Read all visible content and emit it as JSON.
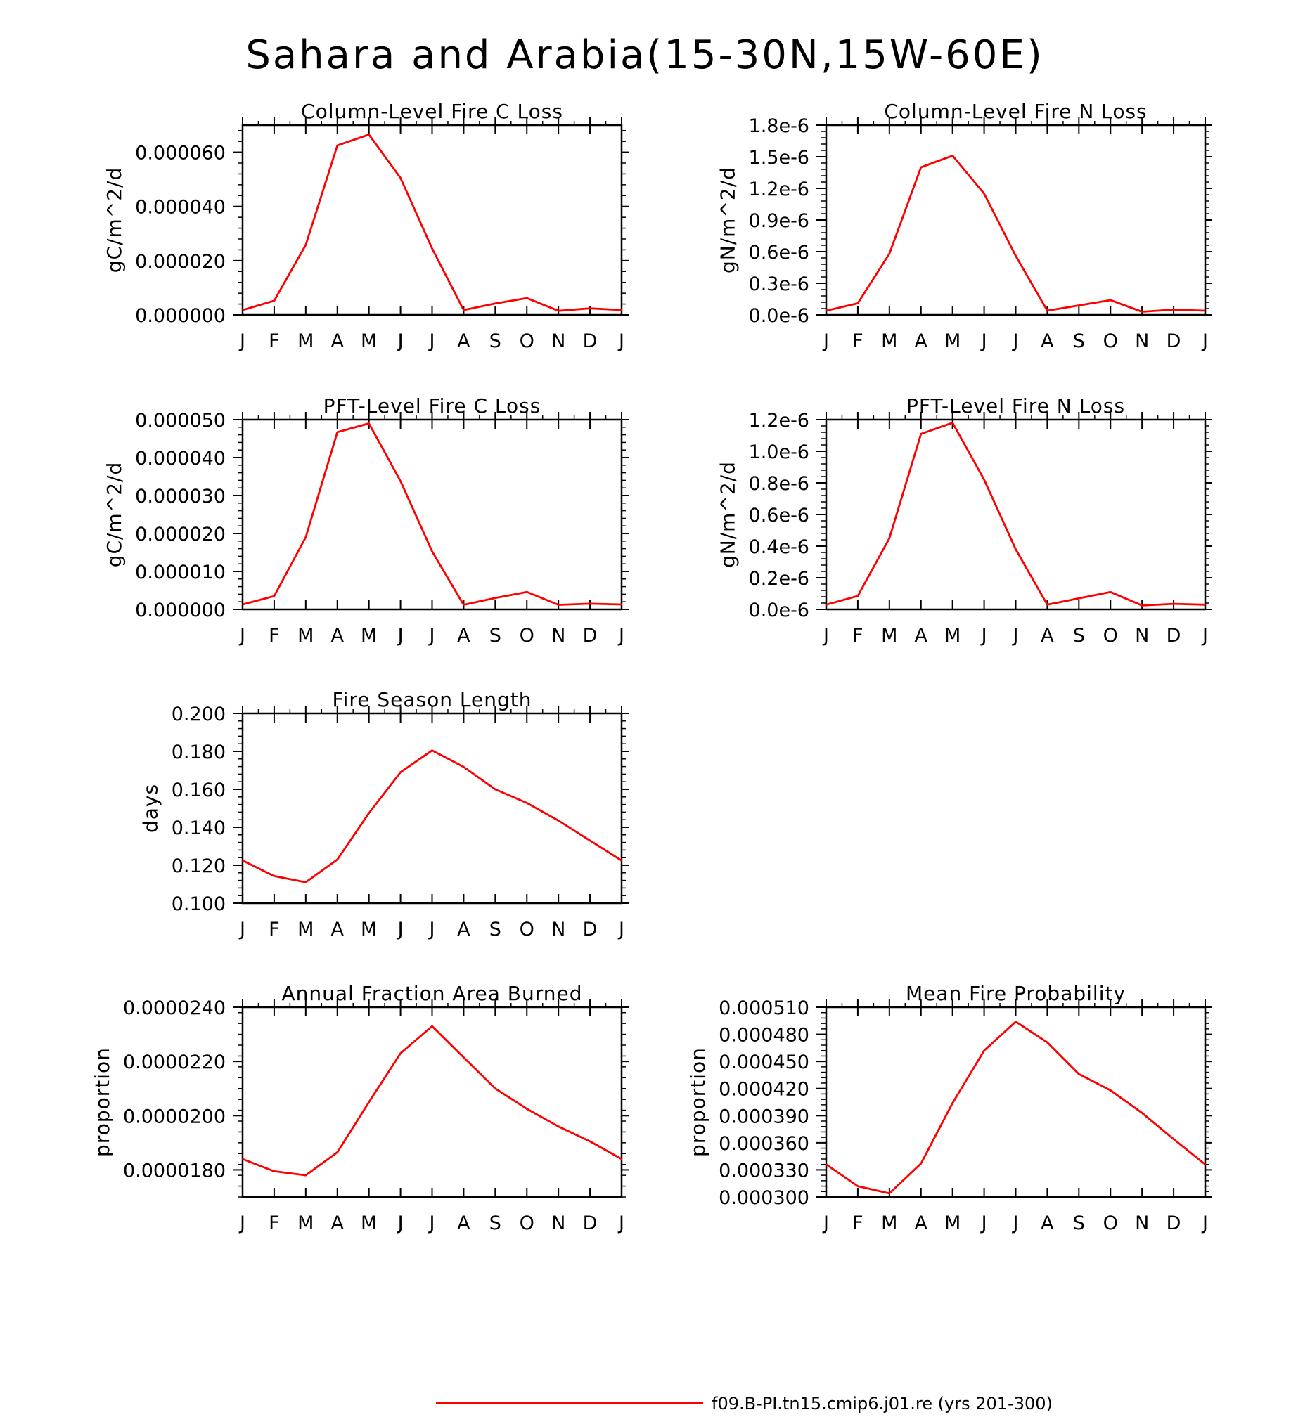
{
  "main_title": "Sahara and Arabia(15-30N,15W-60E)",
  "series_color": "#ff0000",
  "legend": {
    "label": "f09.B-PI.tn15.cmip6.j01.re (yrs 201-300)"
  },
  "chart_data": [
    {
      "type": "line",
      "title": "Column-Level Fire C Loss",
      "ylabel": "gC/m^2/d",
      "categories": [
        "J",
        "F",
        "M",
        "A",
        "M",
        "J",
        "J",
        "A",
        "S",
        "O",
        "N",
        "D",
        "J"
      ],
      "ylim": [
        0,
        7e-05
      ],
      "yticks": [
        0,
        2e-05,
        4e-05,
        6e-05
      ],
      "yticklabels": [
        "0.000000",
        "0.000020",
        "0.000040",
        "0.000060"
      ],
      "series": [
        {
          "values": [
            1.8e-06,
            5.2e-06,
            2.58e-05,
            6.25e-05,
            6.65e-05,
            5.05e-05,
            2.45e-05,
            1.8e-06,
            4.2e-06,
            6.2e-06,
            1.5e-06,
            2.4e-06,
            1.8e-06
          ]
        }
      ]
    },
    {
      "type": "line",
      "title": "Column-Level Fire N Loss",
      "ylabel": "gN/m^2/d",
      "categories": [
        "J",
        "F",
        "M",
        "A",
        "M",
        "J",
        "J",
        "A",
        "S",
        "O",
        "N",
        "D",
        "J"
      ],
      "ylim": [
        0,
        1.8e-06
      ],
      "yticks": [
        0,
        3e-07,
        6e-07,
        9e-07,
        1.2e-06,
        1.5e-06,
        1.8e-06
      ],
      "yticklabels": [
        "0.0e-6",
        "0.3e-6",
        "0.6e-6",
        "0.9e-6",
        "1.2e-6",
        "1.5e-6",
        "1.8e-6"
      ],
      "series": [
        {
          "values": [
            4e-08,
            1.1e-07,
            5.8e-07,
            1.4e-06,
            1.51e-06,
            1.15e-06,
            5.6e-07,
            4e-08,
            9e-08,
            1.4e-07,
            3e-08,
            5e-08,
            4e-08
          ]
        }
      ]
    },
    {
      "type": "line",
      "title": "PFT-Level Fire C Loss",
      "ylabel": "gC/m^2/d",
      "categories": [
        "J",
        "F",
        "M",
        "A",
        "M",
        "J",
        "J",
        "A",
        "S",
        "O",
        "N",
        "D",
        "J"
      ],
      "ylim": [
        0,
        5e-05
      ],
      "yticks": [
        0,
        1e-05,
        2e-05,
        3e-05,
        4e-05,
        5e-05
      ],
      "yticklabels": [
        "0.000000",
        "0.000010",
        "0.000020",
        "0.000030",
        "0.000040",
        "0.000050"
      ],
      "series": [
        {
          "values": [
            1.3e-06,
            3.5e-06,
            1.9e-05,
            4.67e-05,
            4.9e-05,
            3.38e-05,
            1.53e-05,
            1.2e-06,
            3e-06,
            4.6e-06,
            1.2e-06,
            1.5e-06,
            1.3e-06
          ]
        }
      ]
    },
    {
      "type": "line",
      "title": "PFT-Level Fire N Loss",
      "ylabel": "gN/m^2/d",
      "categories": [
        "J",
        "F",
        "M",
        "A",
        "M",
        "J",
        "J",
        "A",
        "S",
        "O",
        "N",
        "D",
        "J"
      ],
      "ylim": [
        0,
        1.2e-06
      ],
      "yticks": [
        0,
        2e-07,
        4e-07,
        6e-07,
        8e-07,
        1e-06,
        1.2e-06
      ],
      "yticklabels": [
        "0.0e-6",
        "0.2e-6",
        "0.4e-6",
        "0.6e-6",
        "0.8e-6",
        "1.0e-6",
        "1.2e-6"
      ],
      "series": [
        {
          "values": [
            3e-08,
            8.5e-08,
            4.5e-07,
            1.11e-06,
            1.18e-06,
            8.2e-07,
            3.8e-07,
            3e-08,
            7e-08,
            1.1e-07,
            2.5e-08,
            3.5e-08,
            3e-08
          ]
        }
      ]
    },
    {
      "type": "line",
      "title": "Fire Season Length",
      "ylabel": "days",
      "categories": [
        "J",
        "F",
        "M",
        "A",
        "M",
        "J",
        "J",
        "A",
        "S",
        "O",
        "N",
        "D",
        "J"
      ],
      "ylim": [
        0.1,
        0.2
      ],
      "yticks": [
        0.1,
        0.12,
        0.14,
        0.16,
        0.18,
        0.2
      ],
      "yticklabels": [
        "0.100",
        "0.120",
        "0.140",
        "0.160",
        "0.180",
        "0.200"
      ],
      "series": [
        {
          "values": [
            0.1225,
            0.1143,
            0.111,
            0.123,
            0.1475,
            0.169,
            0.1805,
            0.1718,
            0.16,
            0.1528,
            0.1435,
            0.133,
            0.1225
          ]
        }
      ]
    },
    {
      "type": "line",
      "title": "Annual Fraction Area Burned",
      "ylabel": "proportion",
      "categories": [
        "J",
        "F",
        "M",
        "A",
        "M",
        "J",
        "J",
        "A",
        "S",
        "O",
        "N",
        "D",
        "J"
      ],
      "ylim": [
        1.7e-05,
        2.4e-05
      ],
      "yticks": [
        1.8e-05,
        2e-05,
        2.2e-05,
        2.4e-05
      ],
      "yticklabels": [
        "0.0000180",
        "0.0000200",
        "0.0000220",
        "0.0000240"
      ],
      "series": [
        {
          "values": [
            1.84e-05,
            1.795e-05,
            1.78e-05,
            1.865e-05,
            2.05e-05,
            2.23e-05,
            2.33e-05,
            2.215e-05,
            2.1e-05,
            2.025e-05,
            1.96e-05,
            1.905e-05,
            1.84e-05
          ]
        }
      ]
    },
    {
      "type": "line",
      "title": "Mean Fire Probability",
      "ylabel": "proportion",
      "categories": [
        "J",
        "F",
        "M",
        "A",
        "M",
        "J",
        "J",
        "A",
        "S",
        "O",
        "N",
        "D",
        "J"
      ],
      "ylim": [
        0.0003,
        0.00051
      ],
      "yticks": [
        0.0003,
        0.00033,
        0.00036,
        0.00039,
        0.00042,
        0.00045,
        0.00048,
        0.00051
      ],
      "yticklabels": [
        "0.000300",
        "0.000330",
        "0.000360",
        "0.000390",
        "0.000420",
        "0.000450",
        "0.000480",
        "0.000510"
      ],
      "series": [
        {
          "values": [
            0.000336,
            0.000312,
            0.000304,
            0.000337,
            0.000404,
            0.000462,
            0.000494,
            0.000471,
            0.000436,
            0.000418,
            0.000393,
            0.000364,
            0.000336
          ]
        }
      ]
    }
  ]
}
